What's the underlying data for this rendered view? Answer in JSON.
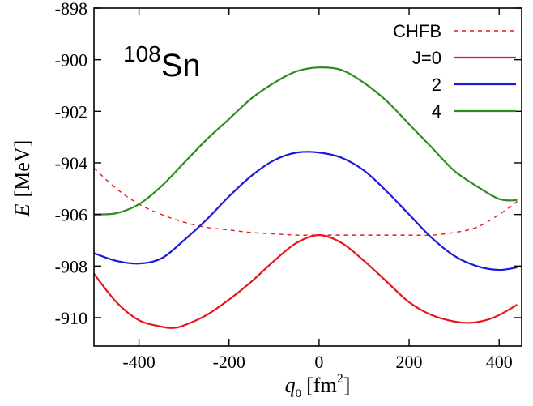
{
  "chart_data": {
    "type": "line",
    "title": "",
    "annotation": {
      "mass_number": "108",
      "element": "Sn"
    },
    "xlabel": {
      "var": "q",
      "sub": "0",
      "unit": "[fm",
      "sup": "2",
      "close": "]"
    },
    "ylabel": {
      "var": "E",
      "unit": "[MeV]"
    },
    "xlim": [
      -500,
      450
    ],
    "ylim": [
      -911.1,
      -898
    ],
    "xticks": [
      -400,
      -200,
      0,
      200,
      400
    ],
    "xtick_labels": [
      "-400",
      "-200",
      "0",
      "200",
      "400"
    ],
    "yticks": [
      -910,
      -908,
      -906,
      -904,
      -902,
      -900,
      -898
    ],
    "ytick_labels": [
      "-910",
      "-908",
      "-906",
      "-904",
      "-902",
      "-900",
      "-898"
    ],
    "grid": false,
    "legend_position": "top-right",
    "series": [
      {
        "name": "CHFB",
        "color": "#e41a1c",
        "dash": "dashed",
        "x": [
          -500,
          -450,
          -400,
          -350,
          -300,
          -250,
          -200,
          -150,
          -100,
          -50,
          0,
          50,
          100,
          150,
          200,
          250,
          300,
          350,
          400,
          440
        ],
        "y": [
          -904.2,
          -905.0,
          -905.6,
          -906.0,
          -906.3,
          -906.5,
          -906.6,
          -906.7,
          -906.75,
          -906.8,
          -906.8,
          -906.8,
          -906.8,
          -906.8,
          -906.8,
          -906.8,
          -906.7,
          -906.5,
          -906.0,
          -905.5
        ]
      },
      {
        "name": "J=0",
        "color": "#e8141c",
        "dash": "solid",
        "x": [
          -500,
          -450,
          -400,
          -350,
          -325,
          -300,
          -250,
          -200,
          -150,
          -100,
          -50,
          0,
          50,
          100,
          150,
          200,
          250,
          300,
          335,
          370,
          400,
          440
        ],
        "y": [
          -908.3,
          -909.4,
          -910.1,
          -910.35,
          -910.4,
          -910.3,
          -909.9,
          -909.3,
          -908.6,
          -907.8,
          -907.1,
          -906.8,
          -907.1,
          -907.8,
          -908.6,
          -909.4,
          -909.9,
          -910.15,
          -910.2,
          -910.1,
          -909.9,
          -909.5
        ]
      },
      {
        "name": "2",
        "color": "#1a1ad8",
        "dash": "solid",
        "x": [
          -500,
          -450,
          -400,
          -350,
          -300,
          -250,
          -200,
          -150,
          -100,
          -50,
          0,
          50,
          100,
          150,
          200,
          250,
          300,
          350,
          400,
          440
        ],
        "y": [
          -907.5,
          -907.8,
          -907.9,
          -907.7,
          -907.0,
          -906.2,
          -905.3,
          -904.5,
          -903.9,
          -903.6,
          -903.6,
          -903.8,
          -904.3,
          -905.1,
          -906.0,
          -906.9,
          -907.6,
          -908.0,
          -908.15,
          -908.05
        ]
      },
      {
        "name": "4",
        "color": "#2e8b1e",
        "dash": "solid",
        "x": [
          -500,
          -450,
          -400,
          -350,
          -300,
          -250,
          -200,
          -150,
          -100,
          -50,
          0,
          50,
          100,
          150,
          200,
          250,
          300,
          350,
          400,
          440
        ],
        "y": [
          -906.0,
          -905.95,
          -905.6,
          -904.9,
          -904.0,
          -903.1,
          -902.3,
          -901.5,
          -900.9,
          -900.45,
          -900.3,
          -900.4,
          -900.9,
          -901.6,
          -902.5,
          -903.4,
          -904.3,
          -904.9,
          -905.4,
          -905.45
        ]
      }
    ]
  }
}
